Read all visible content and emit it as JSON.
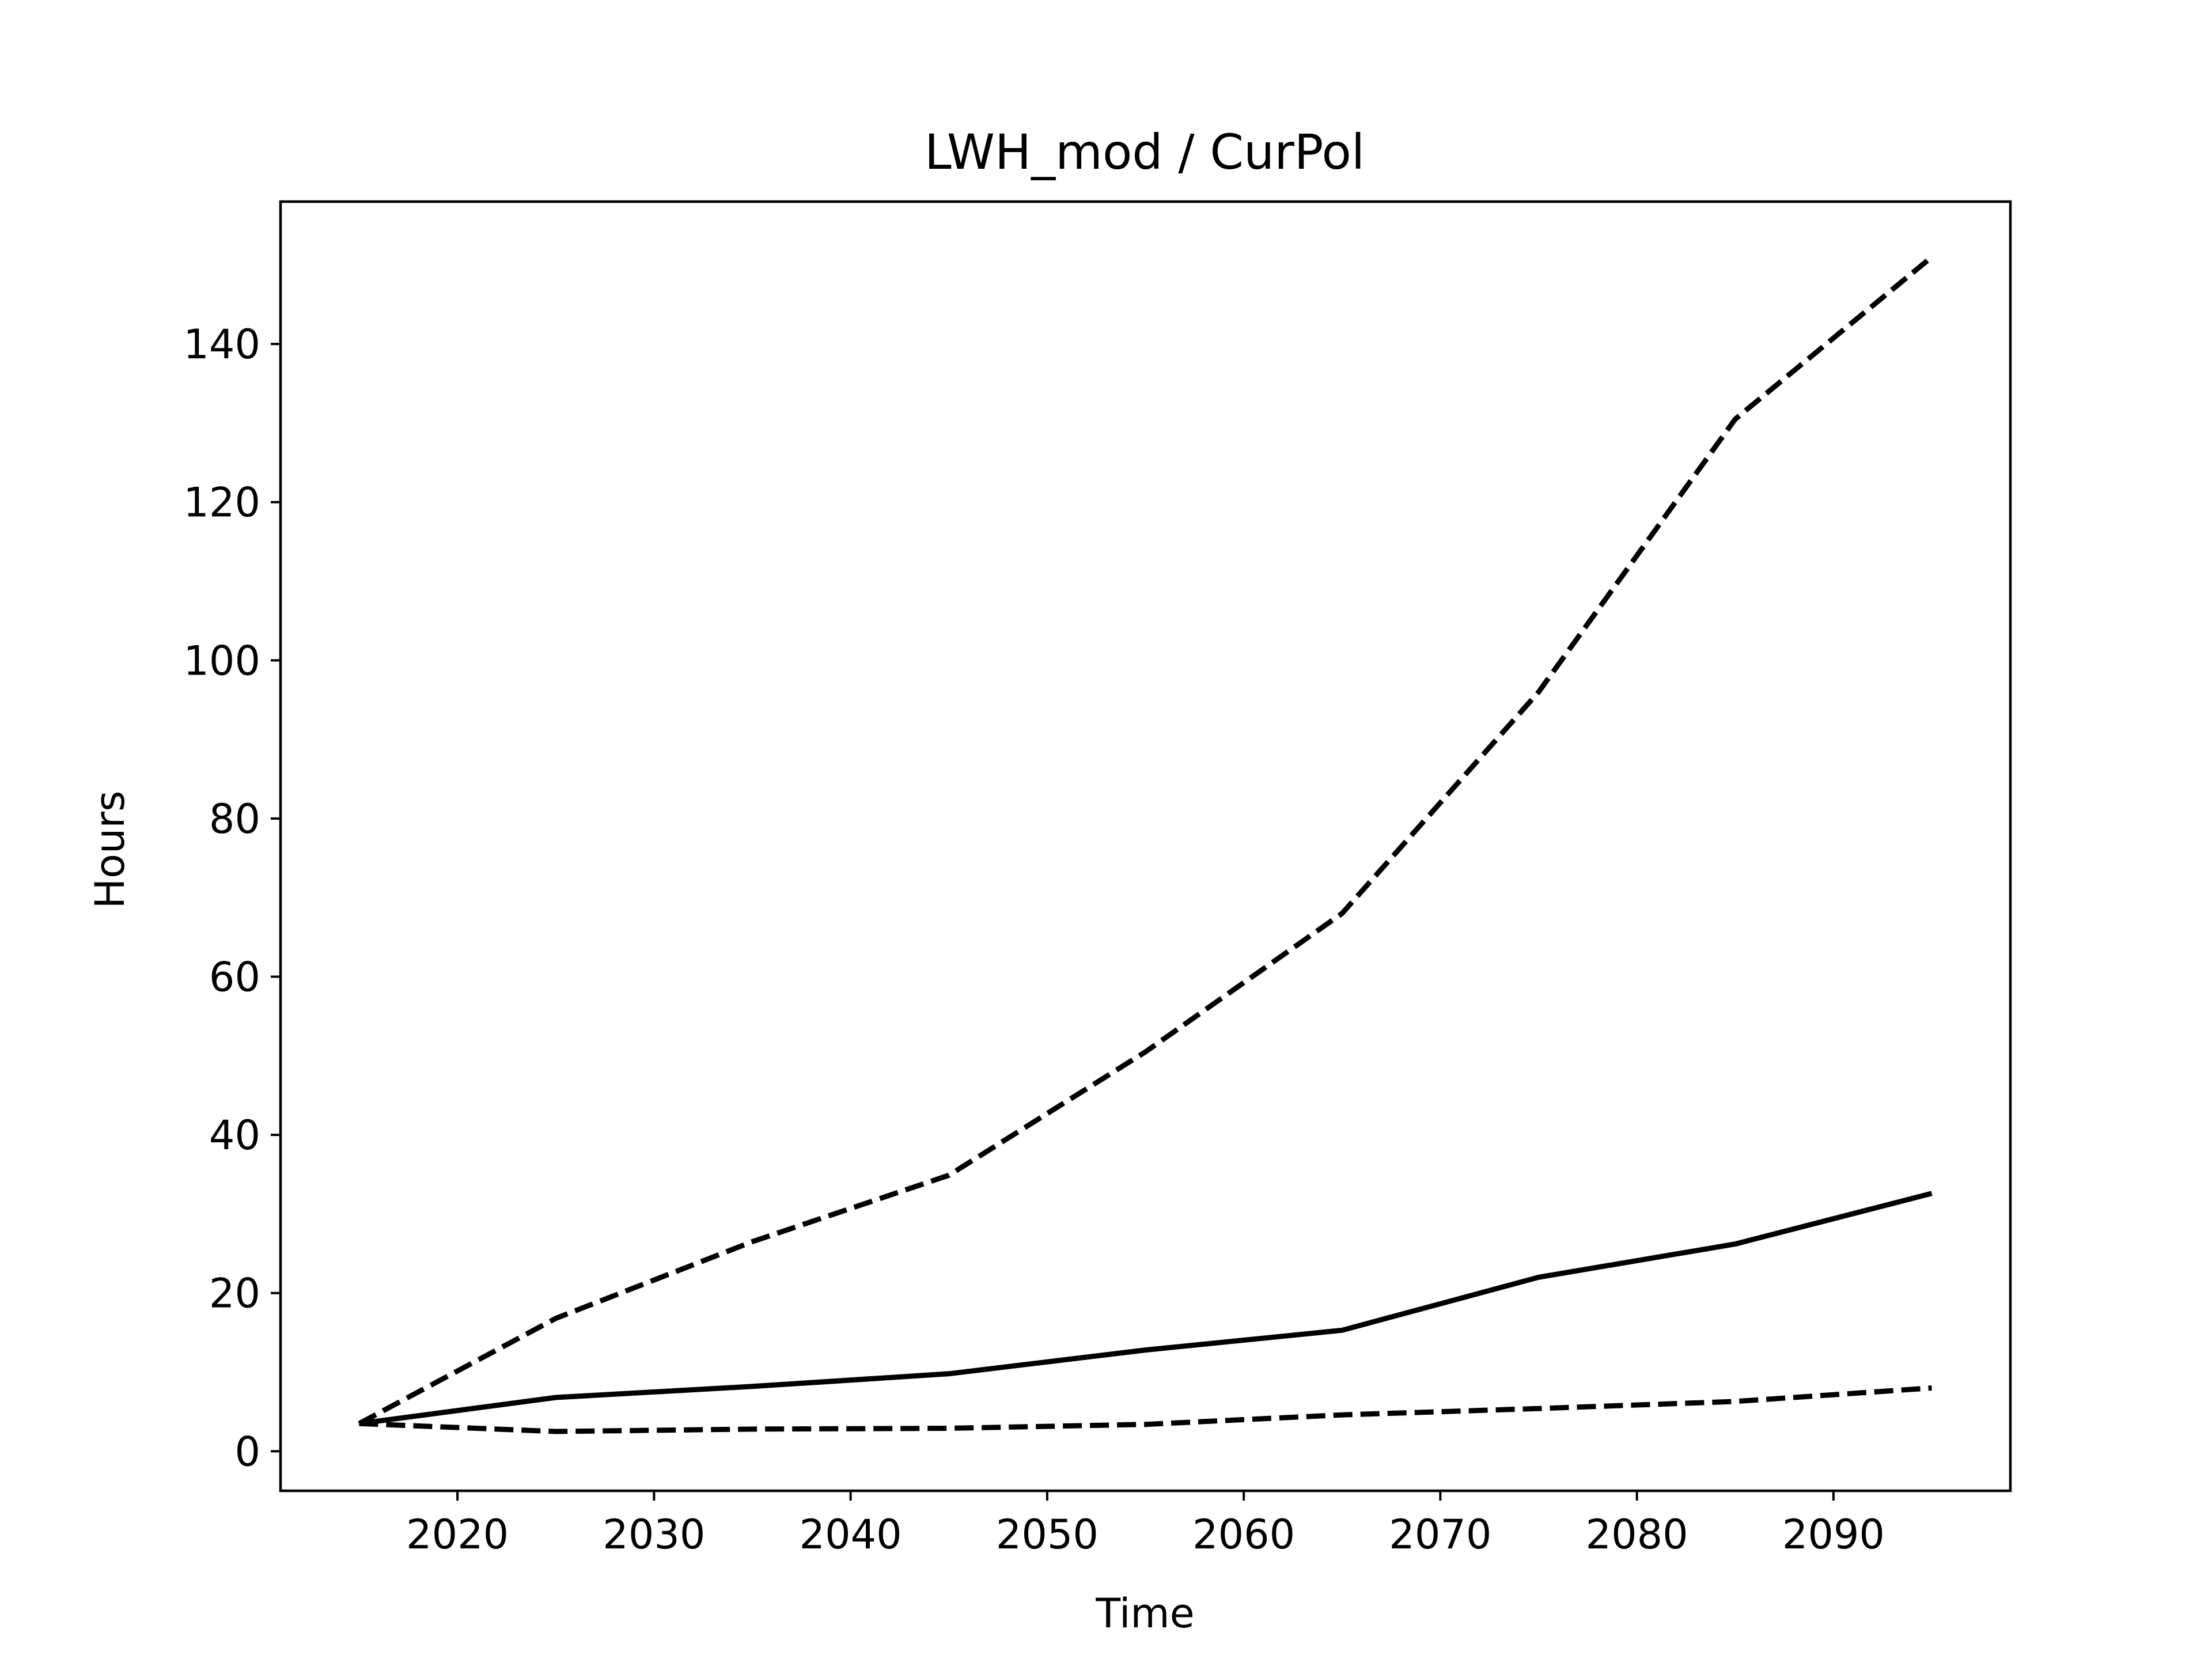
{
  "chart_data": {
    "type": "line",
    "title": "LWH_mod / CurPol",
    "xlabel": "Time",
    "ylabel": "Hours",
    "xlim": [
      2011,
      2099
    ],
    "ylim": [
      -5,
      158
    ],
    "xticks": [
      2020,
      2030,
      2040,
      2050,
      2060,
      2070,
      2080,
      2090
    ],
    "yticks": [
      0,
      20,
      40,
      60,
      80,
      100,
      120,
      140
    ],
    "grid": false,
    "legend": "none",
    "x": [
      2015,
      2025,
      2035,
      2045,
      2055,
      2065,
      2075,
      2085,
      2095
    ],
    "series": [
      {
        "style": "solid",
        "color": "#000000",
        "values": [
          3.5,
          6.8,
          8.2,
          9.8,
          12.8,
          15.3,
          22.0,
          26.2,
          32.6
        ]
      },
      {
        "style": "dashed",
        "color": "#000000",
        "values": [
          3.5,
          16.8,
          26.5,
          34.9,
          50.5,
          68.0,
          96.0,
          130.5,
          151.0
        ]
      },
      {
        "style": "dashed",
        "color": "#000000",
        "values": [
          3.5,
          2.5,
          2.8,
          2.9,
          3.4,
          4.6,
          5.4,
          6.3,
          8.0
        ]
      }
    ]
  }
}
